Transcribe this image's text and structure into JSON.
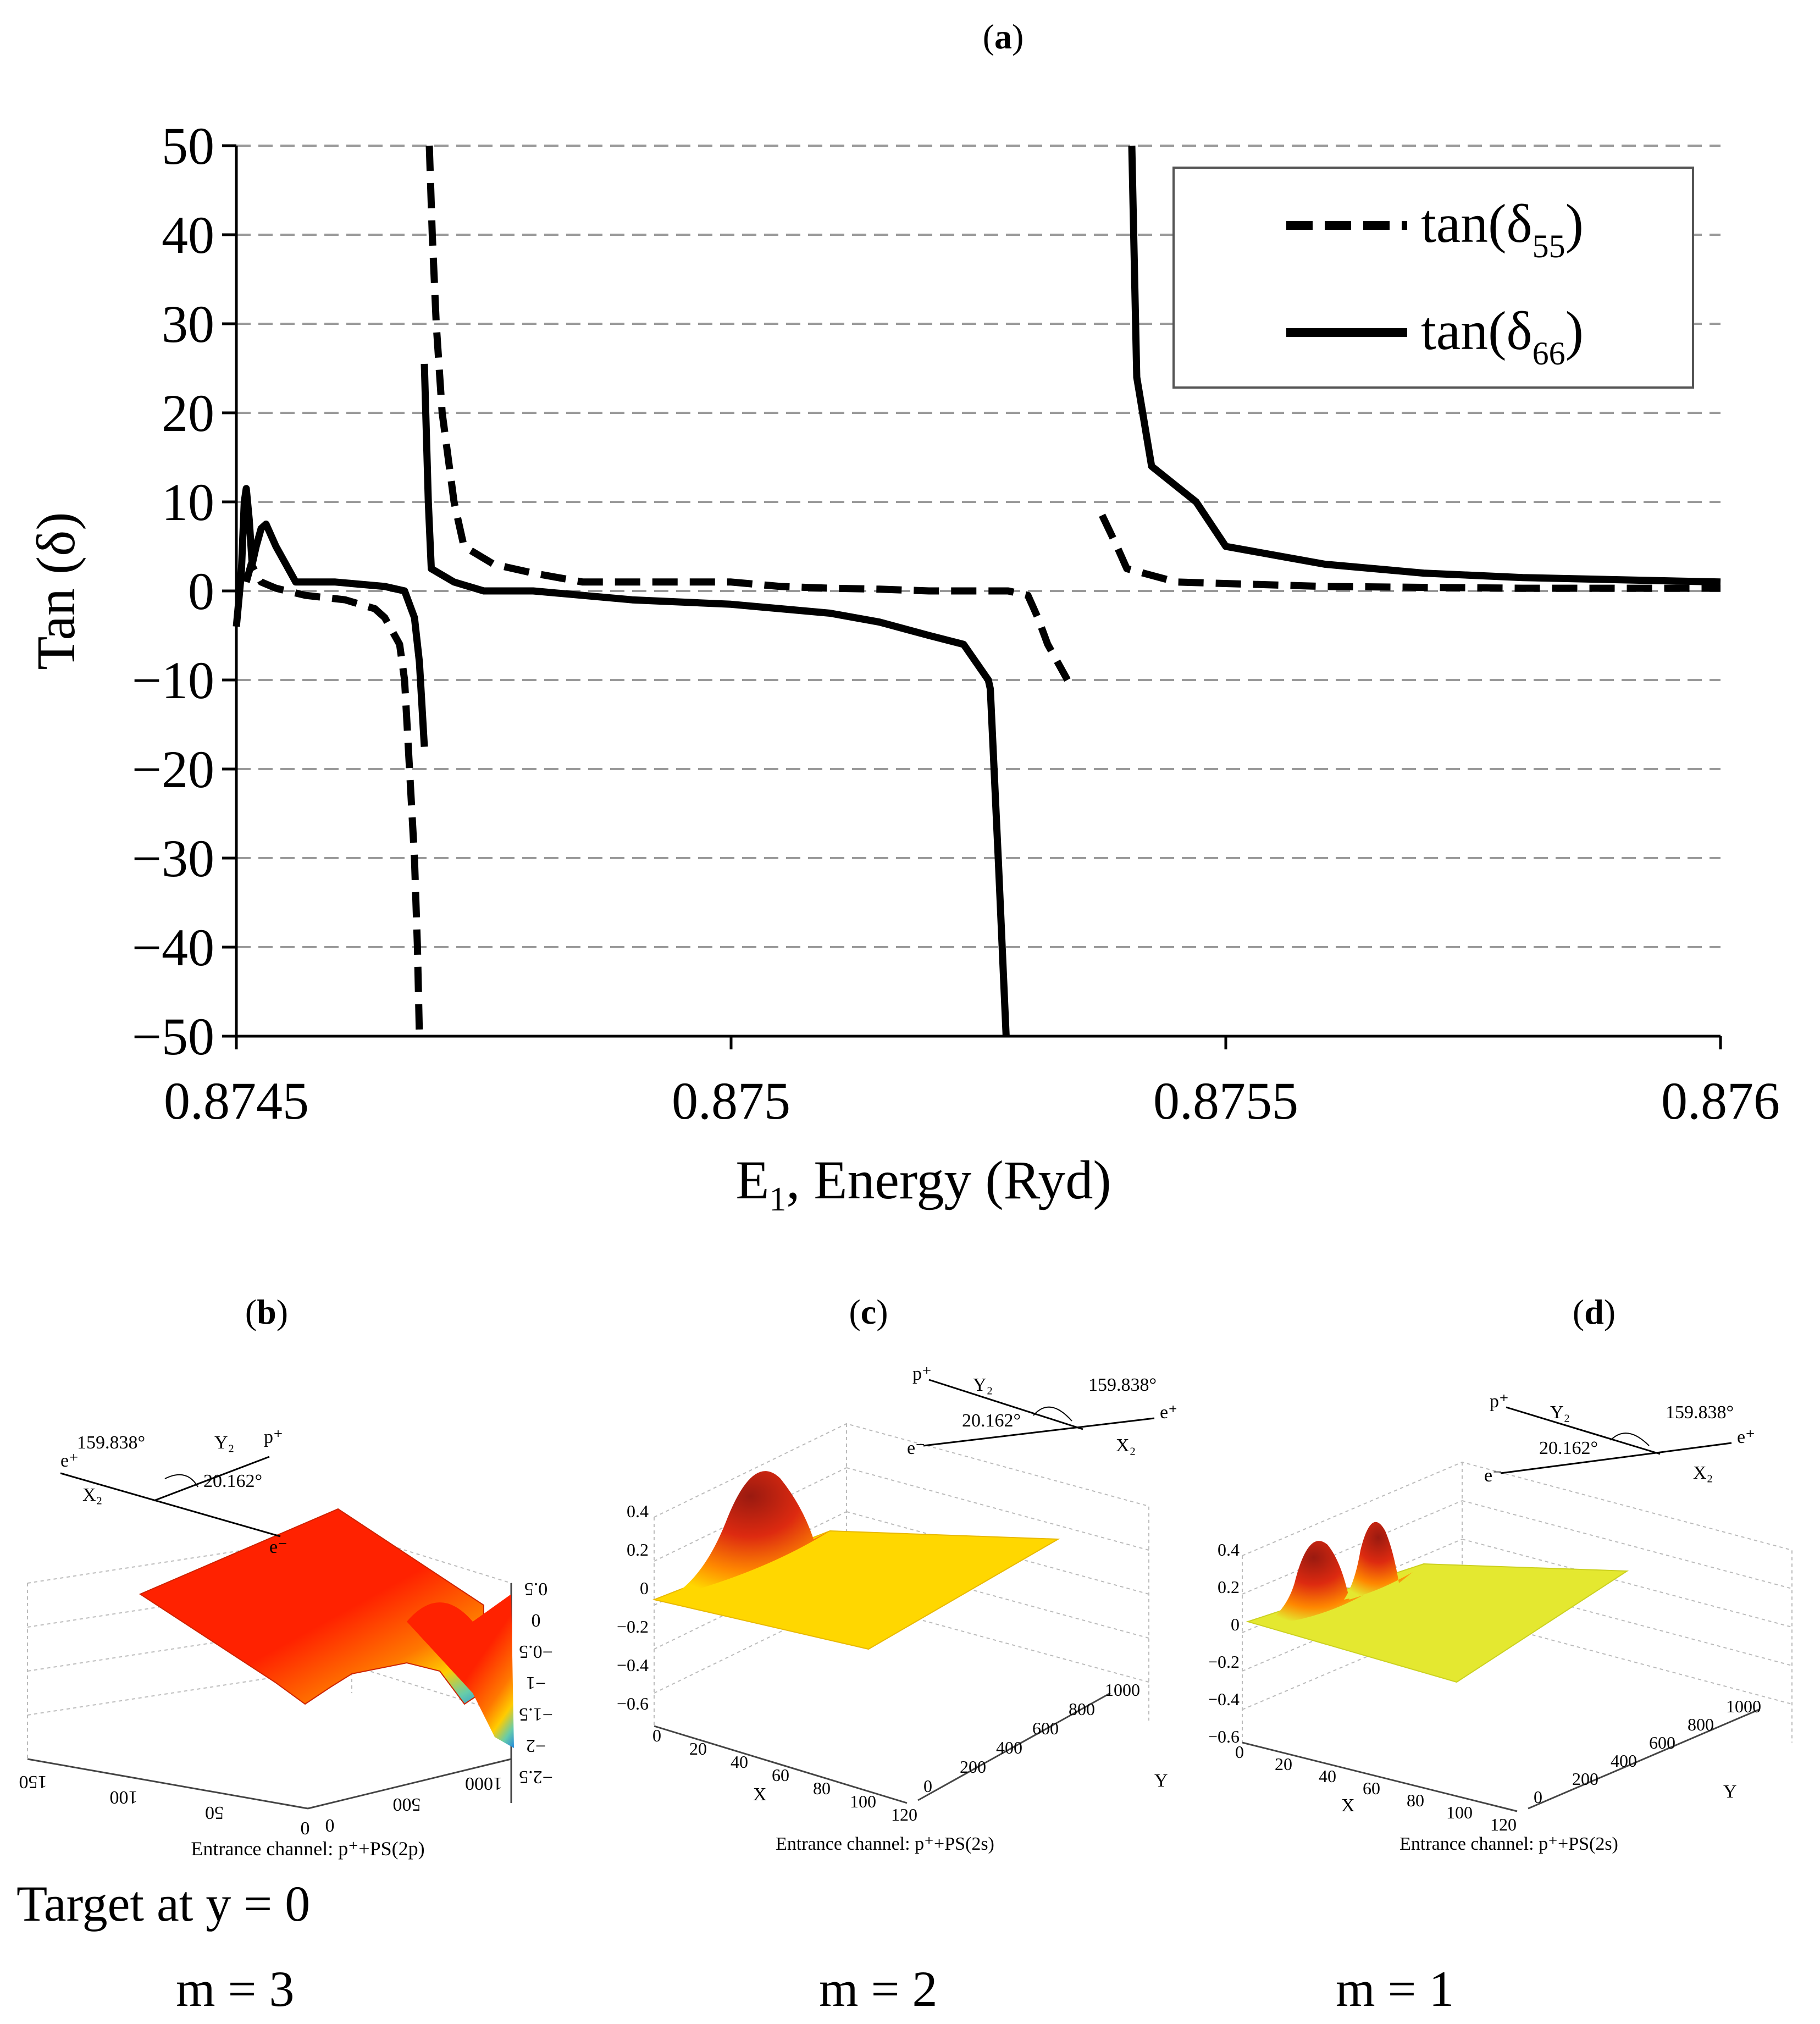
{
  "panels": {
    "a": {
      "label": "a"
    },
    "b": {
      "label": "b"
    },
    "c": {
      "label": "c"
    },
    "d": {
      "label": "d"
    }
  },
  "chart_data": [
    {
      "type": "line",
      "panel": "a",
      "xlabel_main": "E",
      "xlabel_sub": "1",
      "xlabel_rest": ", Energy (Ryd)",
      "ylabel": "Tan (δ)",
      "xlim": [
        0.8745,
        0.876
      ],
      "ylim": [
        -50,
        50
      ],
      "xticks": [
        0.8745,
        0.875,
        0.8755,
        0.876
      ],
      "xtick_labels": [
        "0.8745",
        "0.875",
        "0.8755",
        "0.876"
      ],
      "yticks": [
        50,
        40,
        30,
        20,
        10,
        0,
        -10,
        -20,
        -30,
        -40,
        -50
      ],
      "ytick_labels": [
        "50",
        "40",
        "30",
        "20",
        "10",
        "0",
        "−10",
        "−20",
        "−30",
        "−40",
        "−50"
      ],
      "grid": "horizontal dashed",
      "legend_placement": "top-right",
      "series": [
        {
          "name_main": "tan(δ",
          "name_sub": "55",
          "name_close": ")",
          "style": "dashed",
          "segments": [
            [
              [
                0.87451,
                1
              ],
              [
                0.874515,
                3
              ],
              [
                0.87452,
                2
              ],
              [
                0.874525,
                1
              ],
              [
                0.87454,
                0.3
              ],
              [
                0.87457,
                -0.5
              ],
              [
                0.87461,
                -1
              ],
              [
                0.87464,
                -2
              ],
              [
                0.87465,
                -3
              ],
              [
                0.874665,
                -6
              ],
              [
                0.87467,
                -10
              ],
              [
                0.874675,
                -20
              ],
              [
                0.87468,
                -30
              ],
              [
                0.874683,
                -40
              ],
              [
                0.874685,
                -50
              ]
            ],
            [
              [
                0.874695,
                50
              ],
              [
                0.874698,
                40
              ],
              [
                0.874702,
                30
              ],
              [
                0.874708,
                20
              ],
              [
                0.87472,
                10
              ],
              [
                0.87473,
                5
              ],
              [
                0.87476,
                3
              ],
              [
                0.8748,
                2
              ],
              [
                0.87485,
                1
              ],
              [
                0.8749,
                1
              ],
              [
                0.87495,
                1
              ],
              [
                0.875,
                1
              ],
              [
                0.87505,
                0.5
              ],
              [
                0.8751,
                0.3
              ],
              [
                0.87515,
                0.2
              ],
              [
                0.8752,
                0
              ],
              [
                0.87528,
                0
              ],
              [
                0.8753,
                -0.5
              ],
              [
                0.87531,
                -3
              ],
              [
                0.87532,
                -6
              ],
              [
                0.87534,
                -10
              ]
            ],
            [
              [
                0.875375,
                8.5
              ],
              [
                0.87539,
                5
              ],
              [
                0.8754,
                2.5
              ],
              [
                0.87545,
                1
              ],
              [
                0.8756,
                0.5
              ],
              [
                0.8758,
                0.3
              ],
              [
                0.876,
                0.3
              ]
            ]
          ]
        },
        {
          "name_main": "tan(δ",
          "name_sub": "66",
          "name_close": ")",
          "style": "solid",
          "segments": [
            [
              [
                0.8745,
                -4
              ],
              [
                0.874505,
                2
              ],
              [
                0.874508,
                10
              ],
              [
                0.87451,
                11.5
              ],
              [
                0.874513,
                8
              ],
              [
                0.874516,
                3
              ],
              [
                0.87452,
                5
              ],
              [
                0.874525,
                7
              ],
              [
                0.87453,
                7.5
              ],
              [
                0.87454,
                5
              ],
              [
                0.87455,
                3
              ],
              [
                0.87456,
                1
              ],
              [
                0.8746,
                1
              ],
              [
                0.87465,
                0.5
              ],
              [
                0.87467,
                0
              ],
              [
                0.87468,
                -3
              ],
              [
                0.874685,
                -8
              ],
              [
                0.87469,
                -17.5
              ]
            ],
            [
              [
                0.87469,
                25.5
              ],
              [
                0.874694,
                10
              ],
              [
                0.874697,
                2.5
              ],
              [
                0.87472,
                1
              ],
              [
                0.87475,
                0
              ],
              [
                0.8748,
                0
              ],
              [
                0.8749,
                -1
              ],
              [
                0.875,
                -1.5
              ],
              [
                0.8751,
                -2.5
              ],
              [
                0.87515,
                -3.5
              ],
              [
                0.8752,
                -5
              ],
              [
                0.875235,
                -6
              ],
              [
                0.87526,
                -10
              ],
              [
                0.875262,
                -11
              ],
              [
                0.87527,
                -30
              ],
              [
                0.875278,
                -50
              ]
            ],
            [
              [
                0.875405,
                50
              ],
              [
                0.87541,
                24
              ],
              [
                0.875425,
                14
              ],
              [
                0.87547,
                10
              ],
              [
                0.8755,
                5
              ],
              [
                0.8756,
                3
              ],
              [
                0.8757,
                2
              ],
              [
                0.8758,
                1.5
              ],
              [
                0.876,
                1
              ]
            ]
          ]
        }
      ]
    },
    {
      "type": "surface3d",
      "panel": "b",
      "title": "Entrance channel: p⁺+PS(2p)",
      "mirrored": true,
      "x_ticks": [
        "0",
        "50",
        "100",
        "150"
      ],
      "y_ticks": [
        "0",
        "500",
        "1000"
      ],
      "z_ticks": [
        "0.5",
        "0",
        "−0.5",
        "−1",
        "−1.5",
        "−2",
        "−2.5"
      ],
      "diagram": {
        "p": "p⁺",
        "y2": "Y₂",
        "angle1": "159.838°",
        "angle2": "20.162°",
        "e_plus": "e⁺",
        "x2": "X₂",
        "e_minus": "e⁻"
      },
      "colors": [
        "#ff2200",
        "#ff7700",
        "#ffcc00",
        "#66ccaa",
        "#2288dd"
      ]
    },
    {
      "type": "surface3d",
      "panel": "c",
      "title": "Entrance channel: p⁺+PS(2s)",
      "xlabel": "X",
      "ylabel": "Y",
      "x_ticks": [
        "0",
        "20",
        "40",
        "60",
        "80",
        "100",
        "120"
      ],
      "y_ticks": [
        "0",
        "200",
        "400",
        "600",
        "800",
        "1000"
      ],
      "z_ticks": [
        "0.4",
        "0.2",
        "0",
        "−0.2",
        "−0.4",
        "−0.6"
      ],
      "diagram": {
        "p": "p⁺",
        "y2": "Y₂",
        "angle1": "159.838°",
        "angle2": "20.162°",
        "e_plus": "e⁺",
        "x2": "X₂",
        "e_minus": "e⁻"
      },
      "colors": [
        "#9a1a10",
        "#dd2a10",
        "#ff8800",
        "#ffd700"
      ]
    },
    {
      "type": "surface3d",
      "panel": "d",
      "title": "Entrance channel: p⁺+PS(2s)",
      "xlabel": "X",
      "ylabel": "Y",
      "x_ticks": [
        "0",
        "20",
        "40",
        "60",
        "80",
        "100",
        "120"
      ],
      "y_ticks": [
        "0",
        "200",
        "400",
        "600",
        "800",
        "1000"
      ],
      "z_ticks": [
        "0.4",
        "0.2",
        "0",
        "−0.2",
        "−0.4",
        "−0.6"
      ],
      "diagram": {
        "p": "p⁺",
        "y2": "Y₂",
        "angle1": "159.838°",
        "angle2": "20.162°",
        "e_plus": "e⁺",
        "x2": "X₂",
        "e_minus": "e⁻"
      },
      "colors": [
        "#9a1a10",
        "#dd2a10",
        "#ff8800",
        "#e4e830"
      ]
    }
  ],
  "footer": {
    "target": "Target at y = 0",
    "m_b": "m = 3",
    "m_c": "m = 2",
    "m_d": "m = 1"
  }
}
